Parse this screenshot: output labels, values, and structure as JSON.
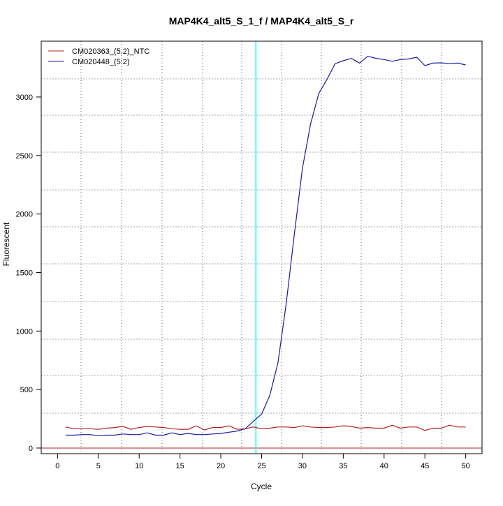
{
  "chart_data": {
    "type": "line",
    "title": "MAP4K4_alt5_S_1_f / MAP4K4_alt5_S_r",
    "xlabel": "Cycle",
    "ylabel": "Fluorescent",
    "xlim": [
      -2,
      52
    ],
    "ylim": [
      -48,
      3477
    ],
    "xticks": [
      0,
      5,
      10,
      15,
      20,
      25,
      30,
      35,
      40,
      45,
      50
    ],
    "yticks": [
      0,
      500,
      1000,
      1500,
      2000,
      2500,
      3000
    ],
    "grid": true,
    "legend_position": "top-left",
    "threshold_line": {
      "value": 0,
      "color": "#b22222"
    },
    "cycle_marker": {
      "value": 24.3,
      "color": "#00ffff"
    },
    "x": [
      1,
      2,
      3,
      4,
      5,
      6,
      7,
      8,
      9,
      10,
      11,
      12,
      13,
      14,
      15,
      16,
      17,
      18,
      19,
      20,
      21,
      22,
      23,
      24,
      25,
      26,
      27,
      28,
      29,
      30,
      31,
      32,
      33,
      34,
      35,
      36,
      37,
      38,
      39,
      40,
      41,
      42,
      43,
      44,
      45,
      46,
      47,
      48,
      49,
      50
    ],
    "series": [
      {
        "name": "CM020363_(5:2)_NTC",
        "color": "#b22222",
        "values": [
          180,
          165,
          165,
          165,
          160,
          170,
          175,
          185,
          160,
          175,
          185,
          180,
          175,
          165,
          160,
          160,
          190,
          155,
          175,
          175,
          190,
          160,
          165,
          180,
          165,
          170,
          180,
          180,
          175,
          190,
          180,
          175,
          175,
          180,
          190,
          185,
          170,
          175,
          170,
          170,
          195,
          170,
          180,
          180,
          150,
          170,
          170,
          195,
          180,
          180
        ]
      },
      {
        "name": "CM020448_(5:2)",
        "color": "#1a1aa0",
        "values": [
          110,
          110,
          115,
          115,
          105,
          110,
          110,
          120,
          115,
          115,
          130,
          110,
          110,
          130,
          115,
          125,
          115,
          115,
          120,
          125,
          135,
          145,
          165,
          230,
          290,
          450,
          730,
          1230,
          1820,
          2390,
          2770,
          3030,
          3150,
          3285,
          3310,
          3330,
          3290,
          3348,
          3330,
          3320,
          3305,
          3320,
          3325,
          3340,
          3268,
          3290,
          3292,
          3285,
          3290,
          3274
        ]
      }
    ]
  }
}
